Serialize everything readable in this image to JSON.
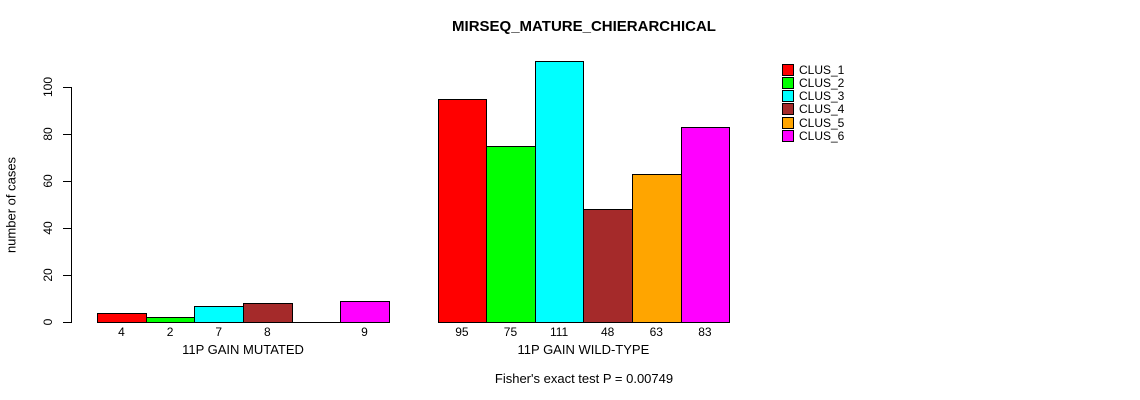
{
  "chart_data": {
    "type": "bar",
    "title": "MIRSEQ_MATURE_CHIERARCHICAL",
    "ylabel": "number of cases",
    "xlabel": "",
    "ylim": [
      0,
      100
    ],
    "yticks": [
      0,
      20,
      40,
      60,
      80,
      100
    ],
    "grid": false,
    "legend_position": "right",
    "categories": [
      "11P GAIN MUTATED",
      "11P GAIN WILD-TYPE"
    ],
    "series": [
      {
        "name": "CLUS_1",
        "color": "#FF0000",
        "values": [
          4,
          95
        ]
      },
      {
        "name": "CLUS_2",
        "color": "#00FF00",
        "values": [
          2,
          75
        ]
      },
      {
        "name": "CLUS_3",
        "color": "#00FFFF",
        "values": [
          7,
          111
        ]
      },
      {
        "name": "CLUS_4",
        "color": "#A52A2A",
        "values": [
          8,
          48
        ]
      },
      {
        "name": "CLUS_5",
        "color": "#FFA500",
        "values": [
          0,
          63
        ]
      },
      {
        "name": "CLUS_6",
        "color": "#FF00FF",
        "values": [
          9,
          83
        ]
      }
    ],
    "bar_value_labels": [
      [
        "4",
        "2",
        "7",
        "8",
        "",
        "9"
      ],
      [
        "95",
        "75",
        "111",
        "48",
        "63",
        "83"
      ]
    ],
    "annotation": "Fisher's exact test P = 0.00749"
  }
}
